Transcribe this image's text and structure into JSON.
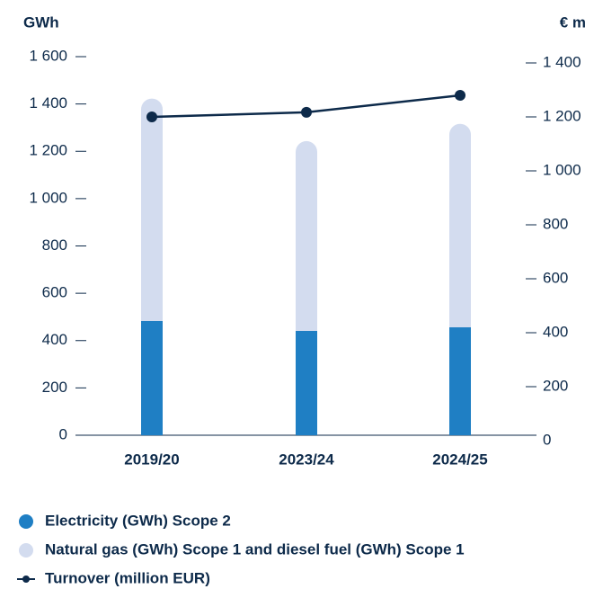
{
  "chart_data": {
    "type": "bar",
    "y_label": "GWh",
    "y2_label": "€ m",
    "categories": [
      "2019/20",
      "2023/24",
      "2024/25"
    ],
    "series": [
      {
        "name": "Electricity (GWh) Scope 2",
        "color": "#1f7fc4",
        "values": [
          483,
          441,
          456
        ]
      },
      {
        "name": "Natural gas (GWh) Scope 1 and diesel fuel (GWh) Scope 1",
        "color": "#d3dcef",
        "values": [
          940,
          802,
          860
        ]
      },
      {
        "name": "Turnover (million EUR)",
        "color": "#0d2a4a",
        "type": "line",
        "axis": "y2",
        "values": [
          1200,
          1217,
          1280
        ]
      }
    ],
    "stacked": true,
    "ylim": [
      0,
      1600
    ],
    "yticks": [
      0,
      200,
      400,
      600,
      800,
      {
        "value": 1000,
        "label": "1 000"
      },
      {
        "value": 1200,
        "label": "1 200"
      },
      {
        "value": 1400,
        "label": "1 400"
      },
      {
        "value": 1600,
        "label": "1 600"
      }
    ],
    "y2lim": [
      0,
      1400
    ],
    "y2ticks": [
      0,
      200,
      400,
      600,
      800,
      {
        "value": 1000,
        "label": "1 000"
      },
      {
        "value": 1200,
        "label": "1 200"
      },
      {
        "value": 1400,
        "label": "1 400"
      }
    ]
  }
}
